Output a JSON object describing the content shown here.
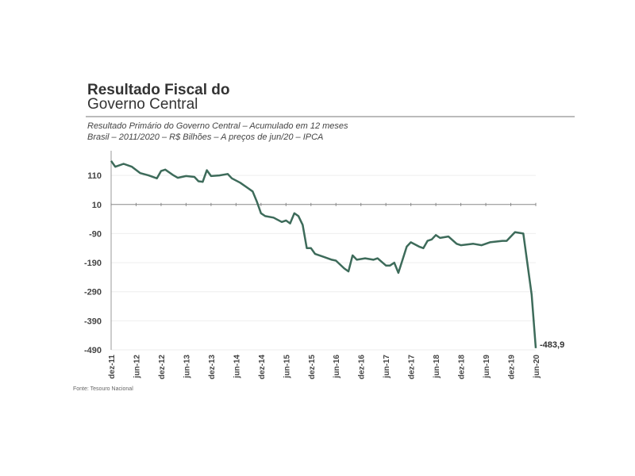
{
  "chart_data": {
    "type": "line",
    "title": "Resultado Fiscal do",
    "title_line2": "Governo Central",
    "subtitle": "Resultado Primário do Governo Central – Acumulado em 12 meses",
    "subtitle2": "Brasil – 2011/2020 – R$ Bilhões – A preços de jun/20 – IPCA",
    "source": "Fonte: Tesouro Nacional",
    "ylim": [
      -490,
      195
    ],
    "yticks": [
      "110",
      "10",
      "-90",
      "-190",
      "-290",
      "-390",
      "-490"
    ],
    "xticks": [
      "dez-11",
      "jun-12",
      "dez-12",
      "jun-13",
      "dez-13",
      "jun-14",
      "dez-14",
      "jun-15",
      "dez-15",
      "jun-16",
      "dez-16",
      "jun-17",
      "dez-17",
      "jun-18",
      "dez-18",
      "jun-19",
      "dez-19",
      "jun-20"
    ],
    "grid": true,
    "color": "#3d6b5a",
    "end_label": "-483,9",
    "x": [
      "dez-11",
      "jan-12",
      "mar-12",
      "mai-12",
      "jul-12",
      "set-12",
      "nov-12",
      "dez-12",
      "jan-13",
      "mar-13",
      "abr-13",
      "jun-13",
      "ago-13",
      "set-13",
      "out-13",
      "nov-13",
      "dez-13",
      "fev-14",
      "abr-14",
      "mai-14",
      "jul-14",
      "set-14",
      "out-14",
      "nov-14",
      "dez-14",
      "jan-15",
      "mar-15",
      "mai-15",
      "jun-15",
      "jul-15",
      "ago-15",
      "set-15",
      "out-15",
      "nov-15",
      "dez-15",
      "jan-16",
      "mar-16",
      "mai-16",
      "jun-16",
      "ago-16",
      "set-16",
      "out-16",
      "nov-16",
      "jan-17",
      "mar-17",
      "abr-17",
      "jun-17",
      "jul-17",
      "ago-17",
      "set-17",
      "nov-17",
      "dez-17",
      "fev-18",
      "mar-18",
      "abr-18",
      "mai-18",
      "jun-18",
      "jul-18",
      "set-18",
      "nov-18",
      "dez-18",
      "mar-19",
      "mai-19",
      "jul-19",
      "out-19",
      "nov-19",
      "jan-20",
      "mar-20",
      "mai-20",
      "jun-20"
    ],
    "values": [
      160,
      140,
      150,
      140,
      118,
      110,
      100,
      125,
      130,
      110,
      102,
      108,
      105,
      90,
      88,
      128,
      108,
      110,
      115,
      100,
      85,
      65,
      55,
      20,
      -20,
      -30,
      -35,
      -50,
      -45,
      -55,
      -20,
      -30,
      -60,
      -140,
      -140,
      -160,
      -170,
      -180,
      -183,
      -210,
      -220,
      -165,
      -180,
      -175,
      -180,
      -175,
      -200,
      -200,
      -190,
      -225,
      -135,
      -120,
      -135,
      -140,
      -115,
      -110,
      -95,
      -105,
      -100,
      -125,
      -130,
      -125,
      -130,
      -120,
      -115,
      -115,
      -85,
      -90,
      -300,
      -483.9
    ]
  }
}
